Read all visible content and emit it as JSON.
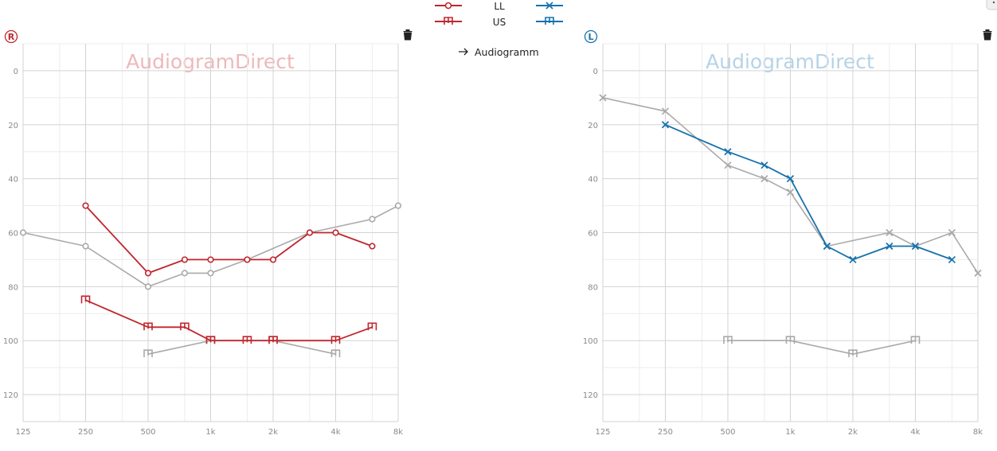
{
  "colors": {
    "right": "#c0262e",
    "left": "#1672ad",
    "reference": "#a9a9a9",
    "grid": "#d3d3d3",
    "grid_minor": "#ececec",
    "watermark_right": "#eeb8ba",
    "watermark_left": "#b6d3e6"
  },
  "legend": {
    "row1_label": "LL",
    "row2_label": "US"
  },
  "link": {
    "label": "Audiogramm",
    "icon": "arrow-right-icon"
  },
  "icons": {
    "delete": "trash-icon",
    "right_ear": "circled-r-icon",
    "left_ear": "circled-l-icon"
  },
  "ears": {
    "right_letter": "R",
    "left_letter": "L"
  },
  "chart_data": [
    {
      "type": "line",
      "ear": "right",
      "watermark": "AudiogramDirect",
      "x_scale": "log2",
      "x_ticks": [
        125,
        250,
        500,
        1000,
        2000,
        4000,
        8000
      ],
      "x_tick_labels": [
        "125",
        "250",
        "500",
        "1k",
        "2k",
        "4k",
        "8k"
      ],
      "y_ticks": [
        0,
        20,
        40,
        60,
        80,
        100,
        120
      ],
      "y_tick_labels": [
        "0",
        "20",
        "40",
        "60",
        "80",
        "100",
        "120"
      ],
      "ylim": [
        -10,
        130
      ],
      "y_inverted": true,
      "grid": true,
      "series": [
        {
          "marker": "circle",
          "style": "reference",
          "x": [
            125,
            250,
            500,
            750,
            1000,
            1500,
            3000,
            6000,
            8000
          ],
          "y": [
            60,
            65,
            80,
            75,
            75,
            70,
            60,
            55,
            50
          ]
        },
        {
          "marker": "circle",
          "style": "active",
          "x": [
            250,
            500,
            750,
            1000,
            1500,
            2000,
            3000,
            4000,
            6000
          ],
          "y": [
            50,
            75,
            70,
            70,
            70,
            70,
            60,
            60,
            65
          ]
        },
        {
          "marker": "bracket",
          "style": "reference",
          "x": [
            500,
            1000,
            2000,
            4000
          ],
          "y": [
            105,
            100,
            100,
            105
          ]
        },
        {
          "marker": "bracket",
          "style": "active",
          "x": [
            250,
            500,
            750,
            1000,
            1500,
            2000,
            4000,
            6000
          ],
          "y": [
            85,
            95,
            95,
            100,
            100,
            100,
            100,
            95
          ]
        }
      ]
    },
    {
      "type": "line",
      "ear": "left",
      "watermark": "AudiogramDirect",
      "x_scale": "log2",
      "x_ticks": [
        125,
        250,
        500,
        1000,
        2000,
        4000,
        8000
      ],
      "x_tick_labels": [
        "125",
        "250",
        "500",
        "1k",
        "2k",
        "4k",
        "8k"
      ],
      "y_ticks": [
        0,
        20,
        40,
        60,
        80,
        100,
        120
      ],
      "y_tick_labels": [
        "0",
        "20",
        "40",
        "60",
        "80",
        "100",
        "120"
      ],
      "ylim": [
        -10,
        130
      ],
      "y_inverted": true,
      "grid": true,
      "series": [
        {
          "marker": "cross",
          "style": "reference",
          "x": [
            125,
            250,
            500,
            750,
            1000,
            1500,
            3000,
            4000,
            6000,
            8000
          ],
          "y": [
            10,
            15,
            35,
            40,
            45,
            65,
            60,
            65,
            60,
            75
          ]
        },
        {
          "marker": "cross",
          "style": "active",
          "x": [
            250,
            500,
            750,
            1000,
            1500,
            2000,
            3000,
            4000,
            6000
          ],
          "y": [
            20,
            30,
            35,
            40,
            65,
            70,
            65,
            65,
            70
          ]
        },
        {
          "marker": "bracket",
          "style": "reference",
          "x": [
            500,
            1000,
            2000,
            4000
          ],
          "y": [
            100,
            100,
            105,
            100
          ]
        }
      ]
    }
  ]
}
